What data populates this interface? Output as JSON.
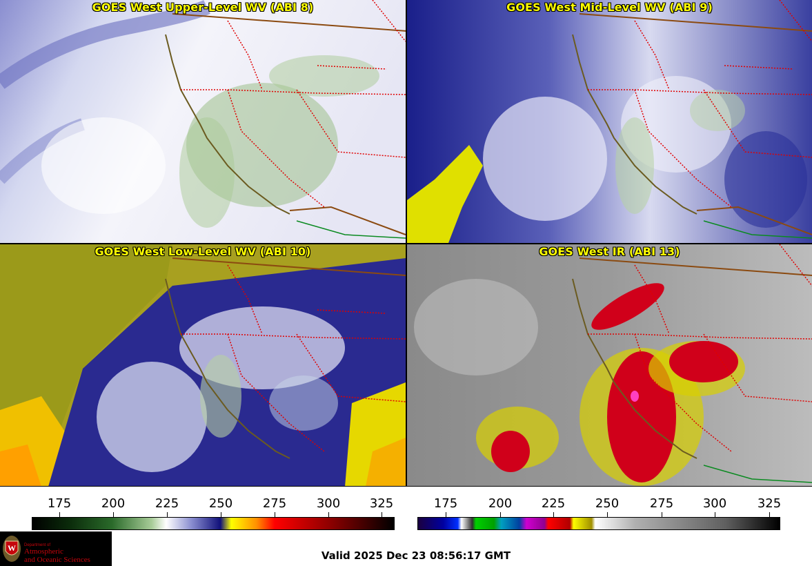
{
  "panels": [
    {
      "title": "GOES West Upper-Level WV (ABI 8)"
    },
    {
      "title": "GOES West Mid-Level WV (ABI 9)"
    },
    {
      "title": "GOES West Low-Level WV (ABI 10)"
    },
    {
      "title": "GOES West IR (ABI 13)"
    }
  ],
  "colorbars": [
    {
      "ticks": [
        "175",
        "200",
        "225",
        "250",
        "275",
        "300",
        "325"
      ]
    },
    {
      "ticks": [
        "175",
        "200",
        "225",
        "250",
        "275",
        "300",
        "325"
      ]
    }
  ],
  "logo": {
    "dept_line": "Department of",
    "line1": "Atmospheric",
    "line2": "and Oceanic Sciences"
  },
  "valid_text": "Valid 2025 Dec 23 08:56:17 GMT"
}
